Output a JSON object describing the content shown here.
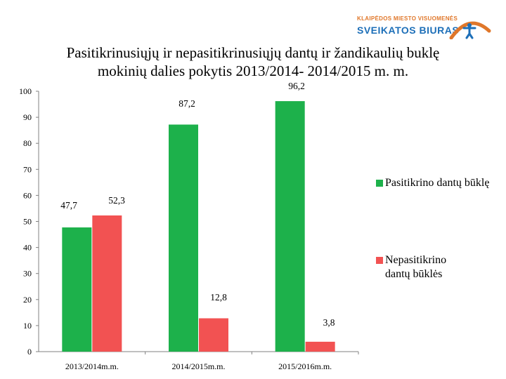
{
  "logo": {
    "line1": "KLAIPĖDOS MIESTO VISUOMENĖS",
    "line2": "SVEIKATOS BIURAS",
    "colors": {
      "orange": "#e0772a",
      "blue": "#1d6fb8"
    }
  },
  "chart_data": {
    "type": "bar",
    "title_lines": [
      "Pasitikrinusiųjų ir nepasitikrinusiųjų dantų ir žandikaulių buklę",
      "mokinių dalies pokytis 2013/2014- 2014/2015 m. m."
    ],
    "categories": [
      "2013/2014m.m.",
      "2014/2015m.m.",
      "2015/2016m.m."
    ],
    "series": [
      {
        "name": "Pasitikrino dantų būklę",
        "color": "#1db14b",
        "values": [
          47.7,
          87.2,
          96.2
        ],
        "labels": [
          "47,7",
          "87,2",
          "96,2"
        ]
      },
      {
        "name": "Nepasitikrino dantų būklės",
        "color": "#f25252",
        "values": [
          52.3,
          12.8,
          3.8
        ],
        "labels": [
          "52,3",
          "12,8",
          "3,8"
        ]
      }
    ],
    "ylim": [
      0,
      100
    ],
    "yticks": [
      0,
      10,
      20,
      30,
      40,
      50,
      60,
      70,
      80,
      90,
      100
    ],
    "xlabel": "",
    "ylabel": "",
    "grid": false,
    "legend": "right"
  }
}
